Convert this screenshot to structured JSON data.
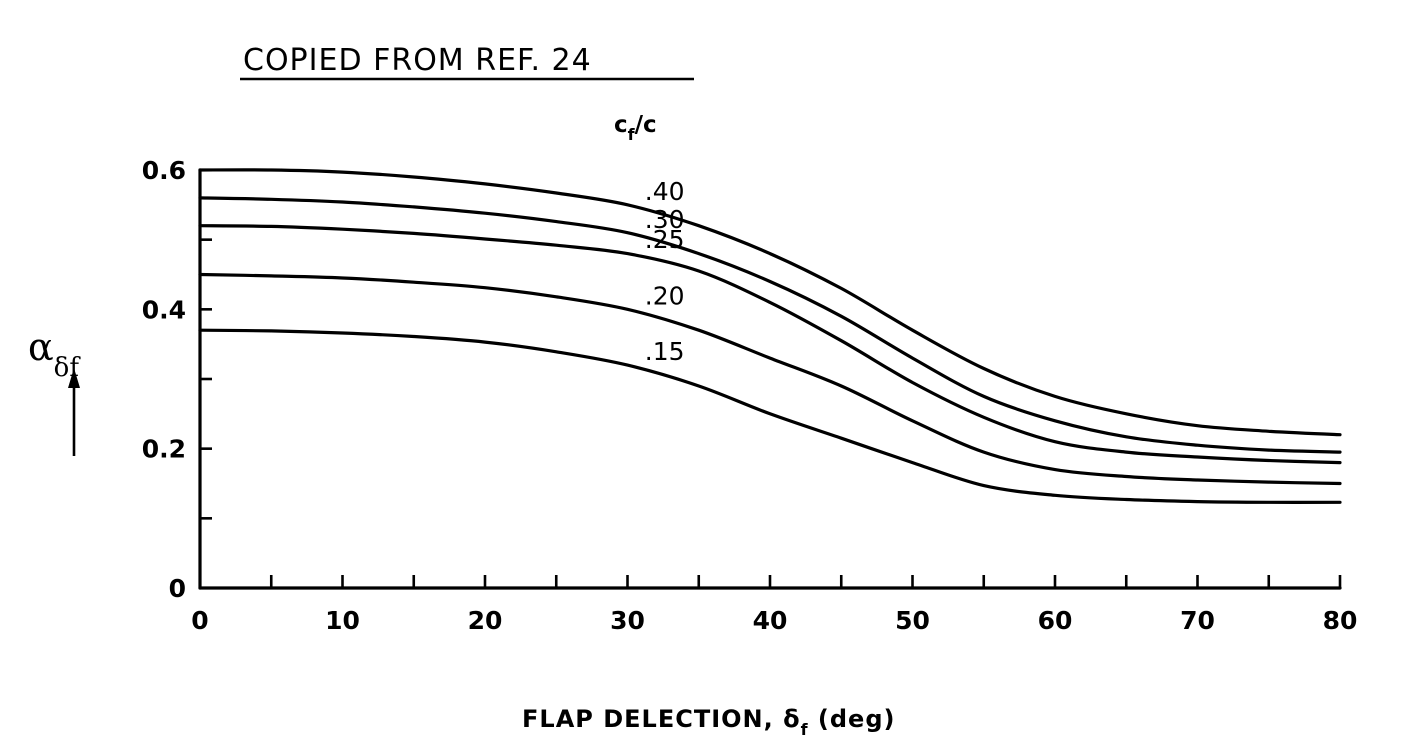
{
  "note": "COPIED FROM REF. 24",
  "chart_data": {
    "type": "line",
    "xlabel": {
      "main": "FLAP DELECTION, δ",
      "sub": "f",
      "suffix": " (deg)"
    },
    "ylabel": {
      "main": "α",
      "sub": "δf"
    },
    "legend_title": {
      "main": "c",
      "sub": "f",
      "suffix": "/c"
    },
    "xlim": [
      0,
      80
    ],
    "ylim": [
      0,
      0.6
    ],
    "x_ticks": [
      0,
      10,
      20,
      30,
      40,
      50,
      60,
      70,
      80
    ],
    "x_tick_labels": [
      "0",
      "10",
      "20",
      "30",
      "40",
      "50",
      "60",
      "70",
      "80"
    ],
    "y_ticks": [
      0,
      0.2,
      0.4,
      0.6
    ],
    "y_tick_labels": [
      "0",
      "0.2",
      "0.4",
      "0.6"
    ],
    "grid": false,
    "x": [
      0,
      5,
      10,
      15,
      20,
      25,
      30,
      35,
      40,
      45,
      50,
      55,
      60,
      65,
      70,
      75,
      80
    ],
    "series": [
      {
        "name": ".40",
        "label_at": 31,
        "values": [
          0.6,
          0.6,
          0.597,
          0.59,
          0.58,
          0.567,
          0.55,
          0.52,
          0.48,
          0.43,
          0.37,
          0.315,
          0.275,
          0.25,
          0.233,
          0.225,
          0.22
        ]
      },
      {
        "name": ".30",
        "label_at": 31,
        "values": [
          0.56,
          0.558,
          0.554,
          0.547,
          0.538,
          0.526,
          0.51,
          0.48,
          0.44,
          0.39,
          0.33,
          0.275,
          0.24,
          0.217,
          0.205,
          0.198,
          0.195
        ]
      },
      {
        "name": ".25",
        "label_at": 31,
        "values": [
          0.52,
          0.519,
          0.515,
          0.509,
          0.501,
          0.492,
          0.48,
          0.455,
          0.41,
          0.355,
          0.295,
          0.245,
          0.21,
          0.195,
          0.188,
          0.183,
          0.18
        ]
      },
      {
        "name": ".20",
        "label_at": 31,
        "values": [
          0.45,
          0.448,
          0.445,
          0.439,
          0.431,
          0.418,
          0.4,
          0.37,
          0.33,
          0.29,
          0.24,
          0.195,
          0.17,
          0.16,
          0.155,
          0.152,
          0.15
        ]
      },
      {
        "name": ".15",
        "label_at": 31,
        "values": [
          0.37,
          0.369,
          0.366,
          0.361,
          0.353,
          0.339,
          0.32,
          0.29,
          0.25,
          0.215,
          0.18,
          0.147,
          0.133,
          0.127,
          0.124,
          0.123,
          0.123
        ]
      }
    ]
  }
}
